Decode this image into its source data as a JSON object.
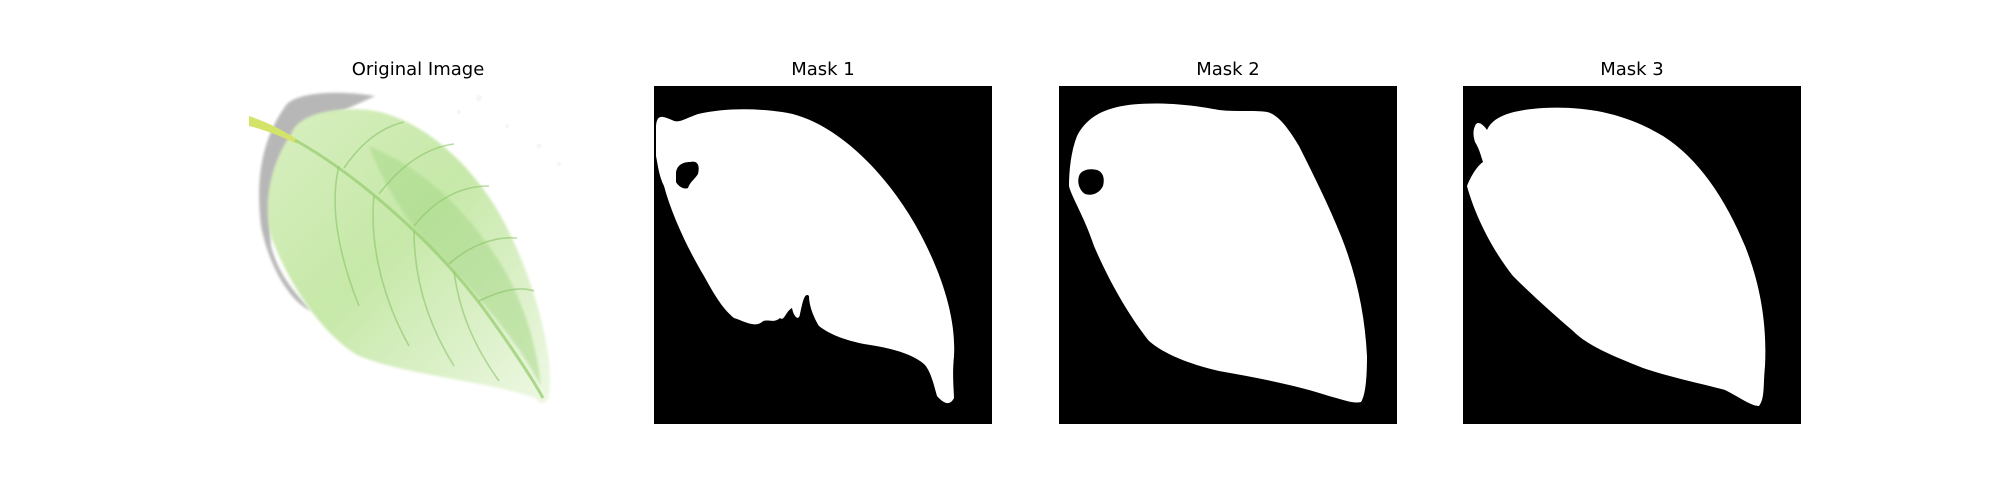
{
  "panels": [
    {
      "title": "Original Image"
    },
    {
      "title": "Mask 1"
    },
    {
      "title": "Mask 2"
    },
    {
      "title": "Mask 3"
    }
  ],
  "colors": {
    "mask_background": "#000000",
    "mask_foreground": "#ffffff",
    "leaf_light": "#e6f5d3",
    "leaf_mid": "#b9e29a",
    "leaf_vein": "#7cc45f",
    "stem": "#d6e86a",
    "shadow": "#9a9a9a"
  }
}
